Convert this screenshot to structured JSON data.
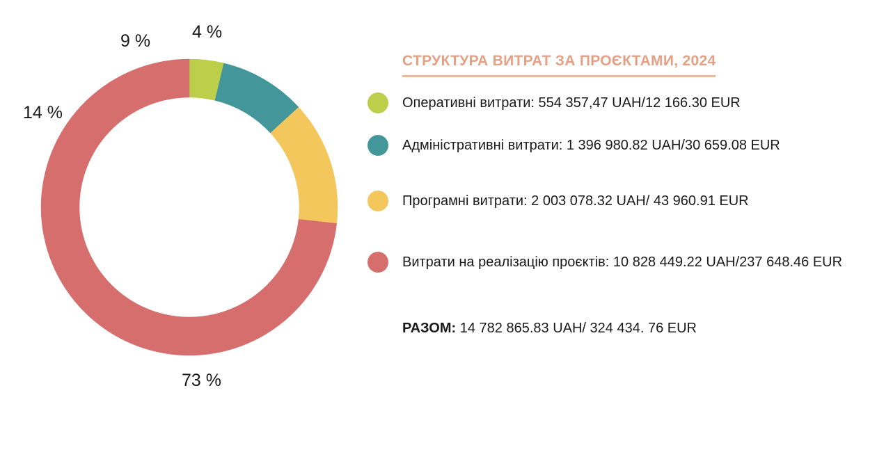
{
  "chart_data": {
    "type": "pie",
    "variant": "donut",
    "title": "СТРУКТУРА ВИТРАТ ЗА ПРОЄКТАМИ, 2024",
    "series": [
      {
        "name": "Оперативні витрати",
        "value": 554357.47,
        "percent_label": "4 %",
        "color": "#bccf4b",
        "legend": "Оперативні витрати: 554 357,47 UAH/12 166.30 EUR"
      },
      {
        "name": "Адміністративні витрати",
        "value": 1396980.82,
        "percent_label": "9 %",
        "color": "#43979b",
        "legend": "Адміністративні витрати:  1 396 980.82 UAH/30 659.08 EUR"
      },
      {
        "name": "Програмні витрати",
        "value": 2003078.32,
        "percent_label": "14 %",
        "color": "#f4c75d",
        "legend": "Програмні витрати:  2 003 078.32 UAH/ 43 960.91 EUR"
      },
      {
        "name": "Витрати на реалізацію проєктів",
        "value": 10828449.22,
        "percent_label": "73 %",
        "color": "#d66e6e",
        "legend": "Витрати на реалізацію проєктів:  10 828 449.22 UAH/237 648.46 EUR"
      }
    ],
    "total_label": "РАЗОМ:",
    "total_value": "14 782 865.83 UAH/ 324 434. 76 EUR"
  }
}
